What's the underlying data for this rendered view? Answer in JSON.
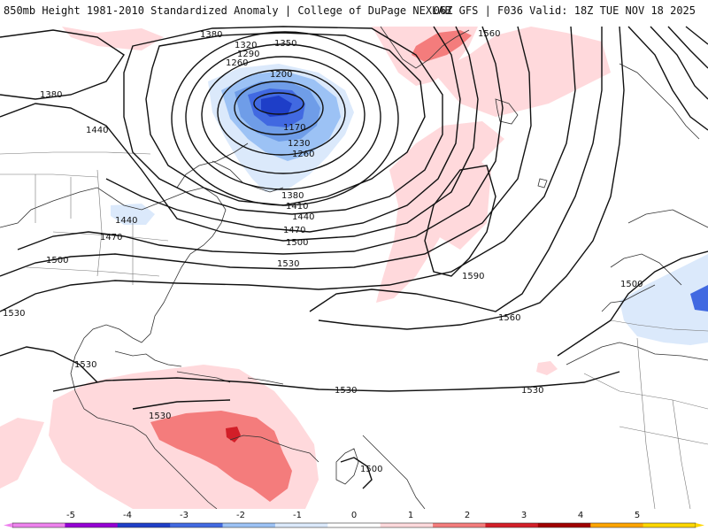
{
  "header": {
    "left_title": "850mb Height 1981-2010 Standardized Anomaly | College of DuPage NEXLAB",
    "right_title": "06Z GFS | F036 Valid: 18Z TUE NOV 18 2025"
  },
  "map": {
    "contour_labels": [
      "1380",
      "1320",
      "1290",
      "1260",
      "1350",
      "1200",
      "1170",
      "1230",
      "1260",
      "1560",
      "1380",
      "1440",
      "1380",
      "1410",
      "1440",
      "1470",
      "1500",
      "1530",
      "1440",
      "1470",
      "1500",
      "1590",
      "1560",
      "1500",
      "1530",
      "1530",
      "1530",
      "1530",
      "1530",
      "1500"
    ]
  },
  "colorbar": {
    "tick_labels": [
      "-5",
      "-4",
      "-3",
      "-2",
      "-1",
      "0",
      "1",
      "2",
      "3",
      "4",
      "5"
    ],
    "colors": [
      "#ee82ee",
      "#9400d3",
      "#1e3ec8",
      "#4169e1",
      "#9cc2f5",
      "#dbe9fb",
      "#ffffff",
      "#ffd9dc",
      "#f47c7c",
      "#d21e28",
      "#a00000",
      "#ffa500",
      "#ffd700"
    ]
  }
}
